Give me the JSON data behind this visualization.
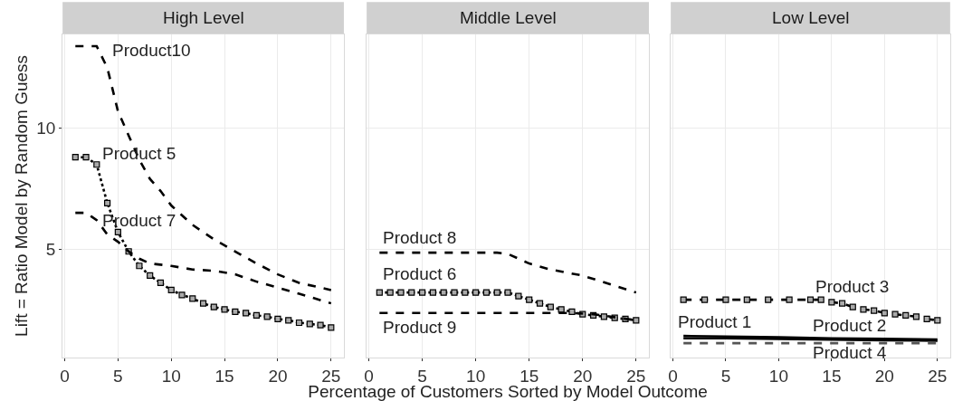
{
  "chart_data": [
    {
      "type": "line",
      "title": "High Level",
      "ylabel": "Lift = Ratio Model by Random Guess",
      "xlim": [
        -0.2,
        26.2
      ],
      "ylim": [
        0.5,
        13.9
      ],
      "xticks": [
        0,
        5,
        10,
        15,
        20,
        25
      ],
      "yticks": [
        5,
        10
      ],
      "grid": true,
      "series": [
        {
          "name": "Product10",
          "color": "#000000",
          "line_style": "dashed",
          "marker": "none",
          "x": [
            1,
            2,
            3,
            4,
            5,
            6,
            7,
            8,
            9,
            10,
            12,
            14,
            16,
            18,
            20,
            22,
            25
          ],
          "values": [
            13.4,
            13.4,
            13.4,
            12.5,
            10.7,
            9.7,
            8.7,
            7.9,
            7.4,
            6.8,
            6.0,
            5.4,
            4.9,
            4.4,
            3.95,
            3.6,
            3.3
          ]
        },
        {
          "name": "Product 5",
          "color": "#000000",
          "line_style": "dotted",
          "marker": "square",
          "x": [
            1,
            2,
            3,
            4,
            5,
            6,
            7,
            8,
            9,
            10,
            11,
            12,
            13,
            14,
            15,
            16,
            17,
            18,
            19,
            20,
            21,
            22,
            23,
            24,
            25
          ],
          "values": [
            8.8,
            8.8,
            8.5,
            6.9,
            5.7,
            4.9,
            4.3,
            3.9,
            3.6,
            3.3,
            3.1,
            2.95,
            2.75,
            2.6,
            2.5,
            2.4,
            2.35,
            2.25,
            2.2,
            2.1,
            2.05,
            1.95,
            1.9,
            1.85,
            1.75
          ]
        },
        {
          "name": "Product 7",
          "color": "#000000",
          "line_style": "dashed",
          "marker": "none",
          "x": [
            1,
            2,
            3,
            4,
            5,
            6,
            7,
            8,
            10,
            12,
            14,
            16,
            18,
            20,
            22,
            25
          ],
          "values": [
            6.5,
            6.5,
            6.2,
            5.6,
            5.3,
            4.9,
            4.6,
            4.4,
            4.3,
            4.15,
            4.1,
            3.95,
            3.65,
            3.4,
            3.15,
            2.75
          ]
        }
      ]
    },
    {
      "type": "line",
      "title": "Middle Level",
      "xlabel": "Percentage of Customers Sorted by Model Outcome",
      "xlim": [
        -0.2,
        26.2
      ],
      "ylim": [
        0.5,
        13.9
      ],
      "xticks": [
        0,
        5,
        10,
        15,
        20,
        25
      ],
      "yticks": [
        5,
        10
      ],
      "grid": true,
      "tick_labels": "x",
      "series": [
        {
          "name": "Product 8",
          "color": "#000000",
          "line_style": "dashed",
          "marker": "none",
          "x": [
            1,
            12,
            13,
            15,
            17,
            20,
            25
          ],
          "values": [
            4.85,
            4.85,
            4.8,
            4.4,
            4.15,
            3.9,
            3.2
          ]
        },
        {
          "name": "Product 6",
          "color": "#000000",
          "line_style": "dotted",
          "marker": "square",
          "x": [
            1,
            2,
            3,
            4,
            5,
            6,
            7,
            8,
            9,
            10,
            11,
            12,
            13,
            14,
            15,
            16,
            17,
            18,
            19,
            20,
            21,
            22,
            23,
            24,
            25
          ],
          "values": [
            3.2,
            3.2,
            3.2,
            3.2,
            3.2,
            3.2,
            3.2,
            3.2,
            3.2,
            3.2,
            3.2,
            3.2,
            3.2,
            3.05,
            2.9,
            2.75,
            2.6,
            2.5,
            2.4,
            2.3,
            2.25,
            2.2,
            2.15,
            2.1,
            2.05
          ]
        },
        {
          "name": "Product 9",
          "color": "#000000",
          "line_style": "dashed",
          "marker": "none",
          "x": [
            1,
            19,
            21,
            25
          ],
          "values": [
            2.35,
            2.35,
            2.3,
            2.05
          ]
        }
      ]
    },
    {
      "type": "line",
      "title": "Low Level",
      "xlim": [
        -0.2,
        26.2
      ],
      "ylim": [
        0.5,
        13.9
      ],
      "xticks": [
        0,
        5,
        10,
        15,
        20,
        25
      ],
      "yticks": [
        5,
        10
      ],
      "grid": true,
      "tick_labels": "x",
      "series": [
        {
          "name": "Product 3",
          "color": "#000000",
          "line_style": "dashed",
          "marker": "square",
          "x": [
            1,
            3,
            5,
            7,
            9,
            11,
            13,
            14,
            15,
            16,
            17,
            18,
            19,
            20,
            21,
            22,
            23,
            24,
            25
          ],
          "values": [
            2.9,
            2.9,
            2.9,
            2.9,
            2.9,
            2.9,
            2.9,
            2.9,
            2.8,
            2.75,
            2.6,
            2.5,
            2.45,
            2.35,
            2.3,
            2.25,
            2.2,
            2.1,
            2.05
          ]
        },
        {
          "name": "Product 1",
          "color": "#000000",
          "line_style": "solid",
          "marker": "none",
          "x": [
            1,
            5,
            10,
            15,
            20,
            25
          ],
          "values": [
            1.4,
            1.38,
            1.35,
            1.3,
            1.28,
            1.25
          ]
        },
        {
          "name": "Product 2",
          "color": "#000000",
          "line_style": "solid",
          "marker": "none",
          "x": [
            1,
            5,
            10,
            15,
            20,
            25
          ],
          "values": [
            1.3,
            1.3,
            1.28,
            1.25,
            1.22,
            1.2
          ]
        },
        {
          "name": "Product 4",
          "color": "#555555",
          "line_style": "dashed",
          "marker": "none",
          "x": [
            1,
            5,
            10,
            15,
            20,
            25
          ],
          "values": [
            1.1,
            1.1,
            1.1,
            1.1,
            1.1,
            1.1
          ]
        }
      ]
    }
  ]
}
